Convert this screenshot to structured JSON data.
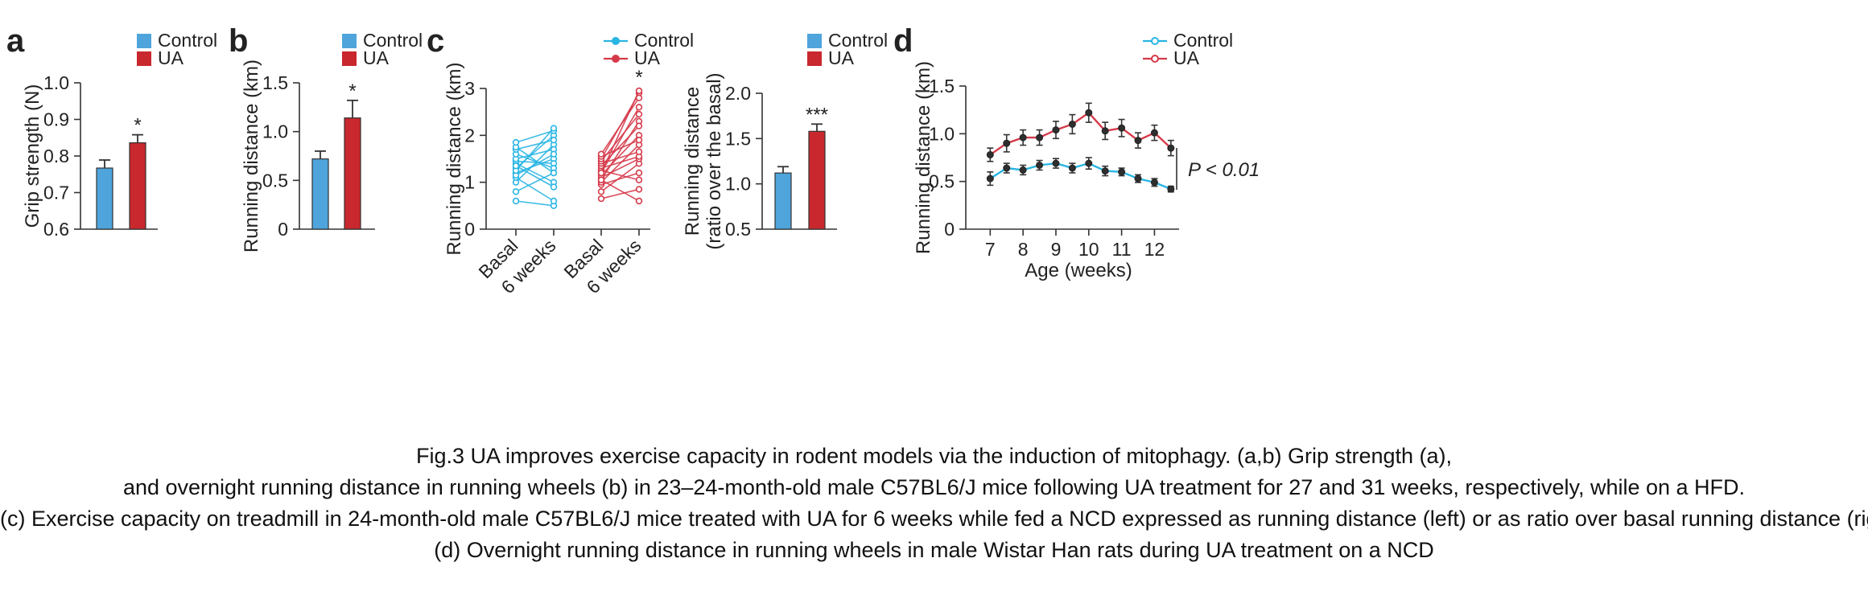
{
  "panel_labels": [
    "a",
    "b",
    "c",
    "d"
  ],
  "colors": {
    "control": "#4fa4dc",
    "ua": "#c8282e",
    "control_line": "#29b5e3",
    "ua_line": "#d53a4a",
    "axis": "#333333",
    "dark_marker": "#2e2e2e"
  },
  "chart_data": [
    {
      "panel": "a",
      "type": "bar",
      "ylabel": "Grip strength (N)",
      "ylim": [
        0.6,
        1.0
      ],
      "yticks": [
        "0.6",
        "0.7",
        "0.8",
        "0.9",
        "1.0"
      ],
      "legend": [
        "Control",
        "UA"
      ],
      "categories": [
        "Control",
        "UA"
      ],
      "values": [
        0.767,
        0.836
      ],
      "errors": [
        0.022,
        0.022
      ],
      "significance": "*"
    },
    {
      "panel": "b",
      "type": "bar",
      "ylabel": "Running distance (km)",
      "ylim": [
        0,
        1.5
      ],
      "yticks": [
        "0",
        "0.5",
        "1.0",
        "1.5"
      ],
      "legend": [
        "Control",
        "UA"
      ],
      "categories": [
        "Control",
        "UA"
      ],
      "values": [
        0.72,
        1.14
      ],
      "errors": [
        0.08,
        0.18
      ],
      "significance": "*"
    },
    {
      "panel": "c-left",
      "type": "line",
      "ylabel": "Running distance (km)",
      "ylim": [
        0,
        3
      ],
      "yticks": [
        "0",
        "1",
        "2",
        "3"
      ],
      "xticks": [
        "Basal",
        "6 weeks",
        "Basal",
        "6 weeks"
      ],
      "legend": [
        "Control",
        "UA"
      ],
      "series": [
        {
          "name": "Control",
          "pairs": [
            [
              0.6,
              0.5
            ],
            [
              0.8,
              1.2
            ],
            [
              1.0,
              1.8
            ],
            [
              1.1,
              0.6
            ],
            [
              1.2,
              1.5
            ],
            [
              1.3,
              2.0
            ],
            [
              1.4,
              1.0
            ],
            [
              1.45,
              1.4
            ],
            [
              1.5,
              1.7
            ],
            [
              1.6,
              1.3
            ],
            [
              1.7,
              1.9
            ],
            [
              1.75,
              1.2
            ],
            [
              1.85,
              2.1
            ],
            [
              1.15,
              1.6
            ],
            [
              1.25,
              2.15
            ],
            [
              1.35,
              0.9
            ]
          ]
        },
        {
          "name": "UA",
          "pairs": [
            [
              0.65,
              0.85
            ],
            [
              0.8,
              1.4
            ],
            [
              0.95,
              1.2
            ],
            [
              1.0,
              1.8
            ],
            [
              1.05,
              2.3
            ],
            [
              1.1,
              1.5
            ],
            [
              1.15,
              2.0
            ],
            [
              1.2,
              2.6
            ],
            [
              1.25,
              1.05
            ],
            [
              1.3,
              1.55
            ],
            [
              1.35,
              2.2
            ],
            [
              1.4,
              1.65
            ],
            [
              1.45,
              2.45
            ],
            [
              1.5,
              2.9
            ],
            [
              1.55,
              1.9
            ],
            [
              1.6,
              2.8
            ],
            [
              1.05,
              0.6
            ],
            [
              1.2,
              2.95
            ]
          ]
        }
      ],
      "significance": "*"
    },
    {
      "panel": "c-right",
      "type": "bar",
      "ylabel": "Running distance (ratio over the basal)",
      "ylabel_lines": [
        "Running distance",
        "(ratio over the basal)"
      ],
      "ylim": [
        0.5,
        2.0
      ],
      "yticks": [
        "0.5",
        "1.0",
        "1.5",
        "2.0"
      ],
      "legend": [
        "Control",
        "UA"
      ],
      "categories": [
        "Control",
        "UA"
      ],
      "values": [
        1.12,
        1.58
      ],
      "errors": [
        0.07,
        0.08
      ],
      "significance": "***"
    },
    {
      "panel": "d",
      "type": "line",
      "xlabel": "Age (weeks)",
      "ylabel": "Running distance (km)",
      "xlim": [
        6.6,
        12.7
      ],
      "ylim": [
        0,
        1.5
      ],
      "xticks": [
        "7",
        "8",
        "9",
        "10",
        "11",
        "12"
      ],
      "yticks": [
        "0",
        "0.5",
        "1.0",
        "1.5"
      ],
      "legend": [
        "Control",
        "UA"
      ],
      "x": [
        7.0,
        7.5,
        8.0,
        8.5,
        9.0,
        9.5,
        10.0,
        10.5,
        11.0,
        11.5,
        12.0,
        12.5
      ],
      "series": [
        {
          "name": "Control",
          "values": [
            0.53,
            0.64,
            0.62,
            0.67,
            0.69,
            0.64,
            0.69,
            0.61,
            0.6,
            0.53,
            0.49,
            0.42
          ],
          "errors": [
            0.07,
            0.05,
            0.05,
            0.05,
            0.05,
            0.05,
            0.06,
            0.05,
            0.04,
            0.04,
            0.04,
            0.03
          ]
        },
        {
          "name": "UA",
          "values": [
            0.78,
            0.9,
            0.96,
            0.96,
            1.04,
            1.1,
            1.22,
            1.03,
            1.06,
            0.93,
            1.01,
            0.85
          ],
          "errors": [
            0.07,
            0.09,
            0.08,
            0.08,
            0.09,
            0.1,
            0.1,
            0.09,
            0.09,
            0.08,
            0.08,
            0.08
          ]
        }
      ],
      "annotation": "P < 0.01"
    }
  ],
  "caption": [
    "Fig.3 UA improves exercise capacity in rodent models via the induction of mitophagy. (a,b) Grip strength (a),",
    "and overnight running distance in running wheels (b) in 23–24-month-old male C57BL6/J mice following UA treatment for 27 and 31 weeks, respectively, while on a HFD.",
    "(c) Exercise capacity on treadmill in 24-month-old male C57BL6/J mice treated with UA for 6 weeks while fed a NCD expressed as running distance (left) or as ratio over basal running distance (right).",
    "(d) Overnight running distance in running wheels in male Wistar Han rats during UA treatment on a NCD"
  ]
}
